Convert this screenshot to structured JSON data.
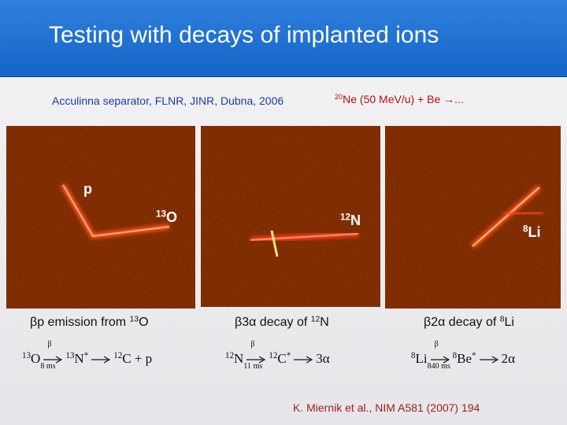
{
  "header": {
    "title": "Testing with decays of implanted ions"
  },
  "source": {
    "facility": "Acculinna separator, FLNR, JINR, Dubna, 2006",
    "reaction": {
      "mass": "20",
      "text": "Ne (50 MeV/u) + Be →..."
    }
  },
  "panels": [
    {
      "labels": [
        {
          "text": "p"
        },
        {
          "mass": "13",
          "symbol": "O"
        }
      ],
      "caption": {
        "text": "βp emission from ",
        "mass": "13",
        "symbol": "O"
      },
      "equation": {
        "parent": {
          "mass": "13",
          "symbol": "O"
        },
        "beta": "β",
        "time": "8 ms",
        "daughter": {
          "mass": "13",
          "symbol": "N",
          "excited": "*"
        },
        "result": {
          "mass": "12",
          "text": "C + p"
        }
      }
    },
    {
      "labels": [
        {
          "mass": "12",
          "symbol": "N"
        }
      ],
      "caption": {
        "text": "β3α decay of ",
        "mass": "12",
        "symbol": "N"
      },
      "equation": {
        "parent": {
          "mass": "12",
          "symbol": "N"
        },
        "beta": "β",
        "time": "11 ms",
        "daughter": {
          "mass": "12",
          "symbol": "C",
          "excited": "*"
        },
        "result": {
          "text": "3α"
        }
      }
    },
    {
      "labels": [
        {
          "mass": "8",
          "symbol": "Li"
        }
      ],
      "caption": {
        "text": "β2α decay of ",
        "mass": "8",
        "symbol": "Li"
      },
      "equation": {
        "parent": {
          "mass": "8",
          "symbol": "Li"
        },
        "beta": "β",
        "time": "840 ms",
        "daughter": {
          "mass": "8",
          "symbol": "Be",
          "excited": "*"
        },
        "result": {
          "text": "2α"
        }
      }
    }
  ],
  "citation": "K. Miernik et al., NIM A581 (2007) 194"
}
